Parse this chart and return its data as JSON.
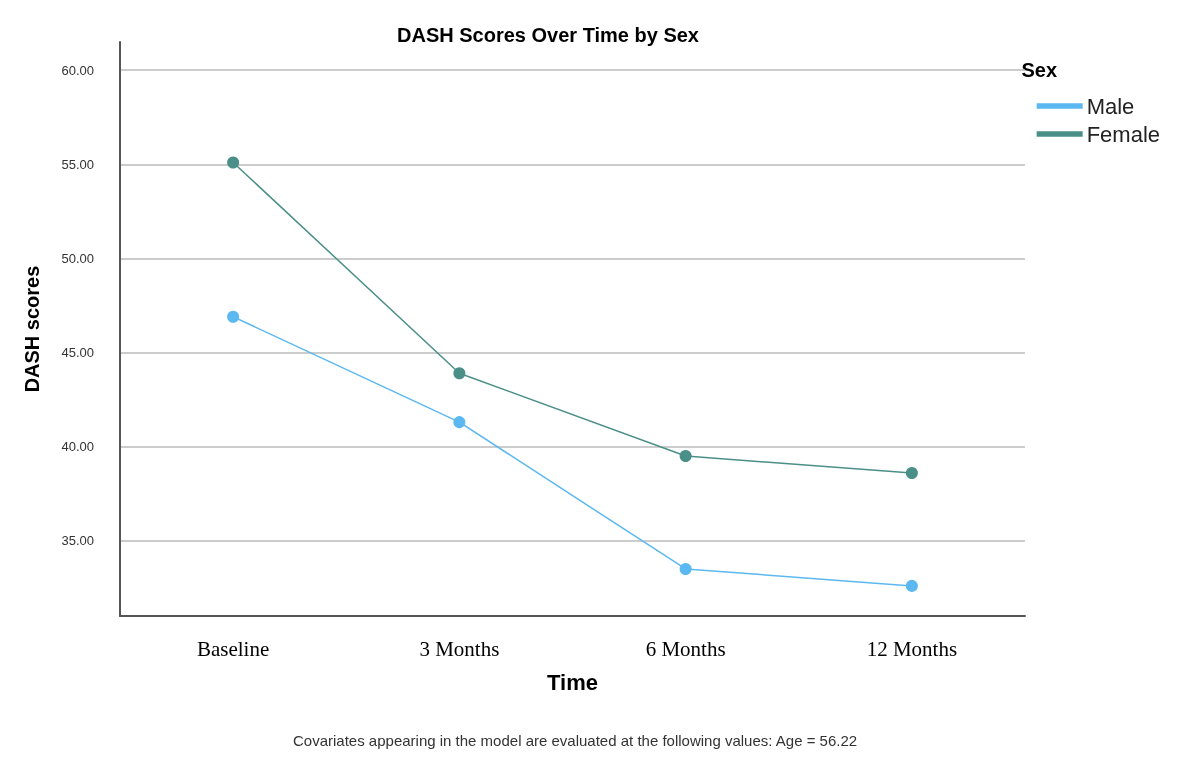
{
  "chart_data": {
    "type": "line",
    "title": "DASH Scores Over Time by Sex",
    "xlabel": "Time",
    "ylabel": "DASH scores",
    "legend_title": "Sex",
    "categories": [
      "Baseline",
      "3 Months",
      "6 Months",
      "12 Months"
    ],
    "series": [
      {
        "name": "Male",
        "color": "#5bb8f0",
        "values": [
          46.9,
          41.3,
          33.5,
          32.6
        ]
      },
      {
        "name": "Female",
        "color": "#4a8f88",
        "values": [
          55.1,
          43.9,
          39.5,
          38.6
        ]
      }
    ],
    "ylim": [
      31,
      61.5
    ],
    "yticks": [
      {
        "value": 35,
        "label": "35.00"
      },
      {
        "value": 40,
        "label": "40.00"
      },
      {
        "value": 45,
        "label": "45.00"
      },
      {
        "value": 50,
        "label": "50.00"
      },
      {
        "value": 55,
        "label": "55.00"
      },
      {
        "value": 60,
        "label": "60.00"
      }
    ],
    "grid": "y",
    "legend": "top right",
    "marker": "circle",
    "line_style": "solid",
    "annotations": [
      "Covariates appearing in the model are evaluated at the following values: Age = 56.22"
    ]
  }
}
